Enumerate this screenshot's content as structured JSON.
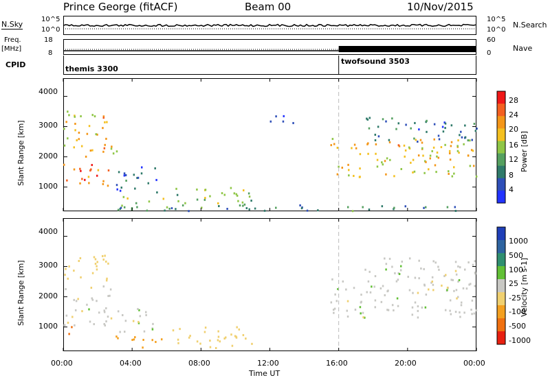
{
  "header": {
    "station": "Prince George (fitACF)",
    "beam": "Beam 00",
    "date": "10/Nov/2015"
  },
  "top_panel": {
    "left_label": "N.Sky",
    "right_label": "N.Search",
    "tick_high": "10^5",
    "tick_low": "10^0",
    "tick_high_r": "10^5",
    "tick_low_r": "10^0"
  },
  "freq_panel": {
    "label_line1": "Freq.",
    "label_line2": "[MHz]",
    "right_label": "Nave",
    "ticks_left": [
      "18",
      "8"
    ],
    "ticks_right": [
      "60",
      "0"
    ]
  },
  "cpid_panel": {
    "label": "CPID",
    "modes": [
      "themis 3300",
      "twofsound 3503"
    ]
  },
  "power_panel": {
    "ylabel": "Slant Range [km]",
    "yticks": [
      "4000",
      "3000",
      "2000",
      "1000"
    ],
    "colorbar_label": "Power [dB]",
    "colorbar_ticks": [
      "28",
      "24",
      "20",
      "16",
      "12",
      "8",
      "4"
    ],
    "colors": [
      "#2233ff",
      "#2e4fb8",
      "#2f7a6a",
      "#55a060",
      "#8fc646",
      "#f4c020",
      "#f49618",
      "#f46020",
      "#f01818"
    ]
  },
  "velocity_panel": {
    "ylabel": "Slant Range [km]",
    "yticks": [
      "4000",
      "3000",
      "2000",
      "1000"
    ],
    "colorbar_label": "Velocity [m s-1]",
    "colorbar_ticks": [
      "1000",
      "500",
      "100",
      "25",
      "-25",
      "-100",
      "-500",
      "-1000"
    ],
    "colors": [
      "#1f3fb8",
      "#2e64a0",
      "#2f8f70",
      "#62c036",
      "#c8c8c4",
      "#f0d070",
      "#f4a020",
      "#f07010",
      "#e82010"
    ]
  },
  "xaxis": {
    "ticks": [
      "00:00",
      "04:00",
      "08:00",
      "12:00",
      "16:00",
      "20:00",
      "00:00"
    ],
    "label": "Time UT"
  },
  "chart_data": {
    "type": "heatmap",
    "x_unit": "hours UT",
    "xlim": [
      0,
      24
    ],
    "ylim": [
      200,
      4600
    ],
    "mode_change_hour": 16,
    "power_clusters": [
      {
        "t0": 0.0,
        "t1": 2.8,
        "r0": 1000,
        "r1": 1800,
        "value": 26
      },
      {
        "t0": 0.0,
        "t1": 2.6,
        "r0": 2000,
        "r1": 3500,
        "value": 22
      },
      {
        "t0": 2.0,
        "t1": 3.2,
        "r0": 1900,
        "r1": 2400,
        "value": 20
      },
      {
        "t0": 3.0,
        "t1": 5.5,
        "r0": 800,
        "r1": 1700,
        "value": 8
      },
      {
        "t0": 3.0,
        "t1": 6.0,
        "r0": 300,
        "r1": 700,
        "value": 18
      },
      {
        "t0": 6.0,
        "t1": 11.0,
        "r0": 300,
        "r1": 1000,
        "value": 16
      },
      {
        "t0": 11.5,
        "t1": 13.5,
        "r0": 3100,
        "r1": 3400,
        "value": 6
      },
      {
        "t0": 15.5,
        "t1": 24.0,
        "r0": 1300,
        "r1": 2600,
        "value": 22
      },
      {
        "t0": 17.5,
        "t1": 24.0,
        "r0": 2500,
        "r1": 3300,
        "value": 10
      },
      {
        "t0": 3.0,
        "t1": 24.0,
        "r0": 200,
        "r1": 400,
        "value": 12
      }
    ],
    "velocity_clusters": [
      {
        "t0": 0.0,
        "t1": 2.8,
        "r0": 1000,
        "r1": 2400,
        "value": 0
      },
      {
        "t0": 0.0,
        "t1": 2.6,
        "r0": 2500,
        "r1": 3500,
        "value": -60
      },
      {
        "t0": 0.2,
        "t1": 0.8,
        "r0": 700,
        "r1": 1000,
        "value": -400
      },
      {
        "t0": 3.0,
        "t1": 6.0,
        "r0": 300,
        "r1": 700,
        "value": -300
      },
      {
        "t0": 3.0,
        "t1": 5.5,
        "r0": 800,
        "r1": 1600,
        "value": 0
      },
      {
        "t0": 6.0,
        "t1": 11.0,
        "r0": 300,
        "r1": 1000,
        "value": -60
      },
      {
        "t0": 15.5,
        "t1": 24.0,
        "r0": 1300,
        "r1": 2600,
        "value": 0
      },
      {
        "t0": 17.5,
        "t1": 24.0,
        "r0": 2500,
        "r1": 3300,
        "value": 0
      }
    ]
  }
}
